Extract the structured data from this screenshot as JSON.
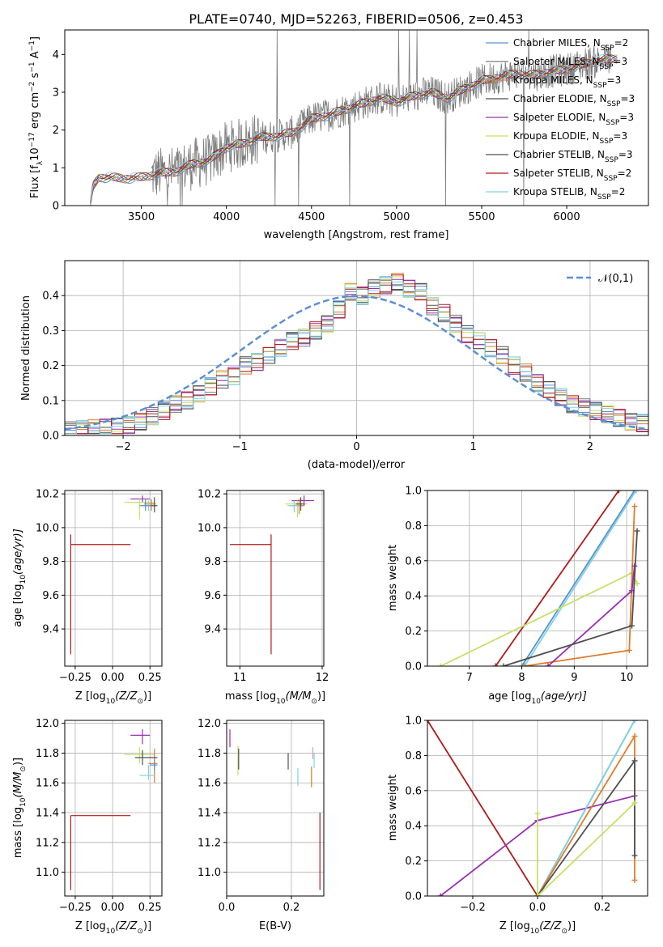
{
  "title": "PLATE=0740, MJD=52263, FIBERID=0506, z=0.453",
  "colors": {
    "chabrier_miles": "#5b8fd6",
    "salpeter_miles": "#7a7a7a",
    "kroupa_miles": "#e07b2a",
    "chabrier_elodie": "#505050",
    "salpeter_elodie": "#9a2fb0",
    "kroupa_elodie": "#c6e066",
    "chabrier_stelib": "#505050",
    "salpeter_stelib": "#b01a1a",
    "kroupa_stelib": "#7fd3e0"
  },
  "chart_data": [
    {
      "id": "spectrum",
      "type": "line",
      "title": "PLATE=0740, MJD=52263, FIBERID=0506, z=0.453",
      "xlabel": "wavelength [Angstrom, rest frame]",
      "ylabel_main": "Flux [f",
      "ylabel_sub": "λ",
      "ylabel_mid": "10",
      "ylabel_sup1": "−17",
      "ylabel_tail1": " erg cm",
      "ylabel_sup2": "−2",
      "ylabel_tail2": " s",
      "ylabel_sup3": "−1",
      "ylabel_tail3": " A",
      "ylabel_sup4": "−1",
      "ylabel_end": "]",
      "xlim": [
        3050,
        6480
      ],
      "ylim": [
        0,
        4.65
      ],
      "xticks": [
        3500,
        4000,
        4500,
        5000,
        5500,
        6000
      ],
      "yticks": [
        0,
        1,
        2,
        3,
        4
      ],
      "legend_position": "top-right",
      "legend": [
        {
          "base": "Chabrier MILES, N",
          "sub": "SSP",
          "tail": "=2",
          "color": "#5b8fd6"
        },
        {
          "base": "Salpeter MILES, N",
          "sub": "SSP",
          "tail": "=3",
          "color": "#7a7a7a"
        },
        {
          "base": "Kroupa MILES, N",
          "sub": "SSP",
          "tail": "=3",
          "color": "#e07b2a"
        },
        {
          "base": "Chabrier ELODIE, N",
          "sub": "SSP",
          "tail": "=3",
          "color": "#505050"
        },
        {
          "base": "Salpeter ELODIE, N",
          "sub": "SSP",
          "tail": "=3",
          "color": "#9a2fb0"
        },
        {
          "base": "Kroupa ELODIE, N",
          "sub": "SSP",
          "tail": "=3",
          "color": "#c6e066"
        },
        {
          "base": "Chabrier STELIB, N",
          "sub": "SSP",
          "tail": "=3",
          "color": "#505050"
        },
        {
          "base": "Salpeter STELIB, N",
          "sub": "SSP",
          "tail": "=2",
          "color": "#b01a1a"
        },
        {
          "base": "Kroupa STELIB, N",
          "sub": "SSP",
          "tail": "=2",
          "color": "#7fd3e0"
        }
      ],
      "model_knots": {
        "x": [
          3200,
          3215,
          3250,
          3300,
          3400,
          3500,
          3600,
          3700,
          3800,
          3900,
          4000,
          4100,
          4200,
          4300,
          4400,
          4500,
          4600,
          4700,
          4800,
          4900,
          5000,
          5100,
          5200,
          5300,
          5400,
          5500,
          5600,
          5700,
          5800,
          5900,
          6000,
          6100,
          6200,
          6300
        ],
        "y": [
          0,
          0.5,
          0.75,
          0.75,
          0.72,
          0.75,
          0.85,
          0.9,
          1.1,
          1.2,
          1.55,
          1.65,
          1.8,
          1.85,
          1.95,
          2.3,
          2.4,
          2.55,
          2.7,
          2.85,
          2.75,
          2.9,
          3.0,
          2.85,
          3.1,
          3.3,
          3.4,
          3.5,
          3.45,
          3.55,
          3.6,
          3.75,
          3.85,
          3.9
        ]
      },
      "data_xrange": [
        3560,
        6260
      ]
    },
    {
      "id": "residuals",
      "type": "histogram",
      "xlabel": "(data-model)/error",
      "ylabel": "Normed distribution",
      "xlim": [
        -2.5,
        2.5
      ],
      "ylim": [
        0,
        0.5
      ],
      "xticks": [
        -2,
        -1,
        0,
        1,
        2
      ],
      "xticklabels": [
        "−2",
        "−1",
        "0",
        "1",
        "2"
      ],
      "yticks": [
        0,
        0.1,
        0.2,
        0.3,
        0.4
      ],
      "yticklabels": [
        "0.0",
        "0.1",
        "0.2",
        "0.3",
        "0.4"
      ],
      "legend_position": "top-right",
      "legend": [
        {
          "label": "𝒩(0,1)",
          "color": "#5b8fd6",
          "dashed": true
        }
      ],
      "bin_width": 0.1,
      "bins_start": -2.5,
      "hist_shape": [
        0.015,
        0.017,
        0.02,
        0.022,
        0.025,
        0.03,
        0.04,
        0.055,
        0.07,
        0.09,
        0.1,
        0.12,
        0.14,
        0.16,
        0.17,
        0.2,
        0.21,
        0.23,
        0.25,
        0.27,
        0.28,
        0.3,
        0.32,
        0.36,
        0.41,
        0.4,
        0.42,
        0.43,
        0.44,
        0.42,
        0.41,
        0.37,
        0.35,
        0.32,
        0.29,
        0.27,
        0.25,
        0.23,
        0.2,
        0.18,
        0.15,
        0.13,
        0.11,
        0.09,
        0.08,
        0.07,
        0.06,
        0.05,
        0.04,
        0.035
      ]
    },
    {
      "id": "age_vs_z",
      "type": "errorbar",
      "xlabel": "Z [log",
      "xlabel_sub": "10",
      "xlabel_tail": "(Z/Z",
      "xlabel_odot": "⊙",
      "xlabel_end": ")]",
      "ylabel": "age  [log",
      "ylabel_sub": "10",
      "ylabel_tail": "(age/yr)]",
      "xlim": [
        -0.32,
        0.33
      ],
      "ylim": [
        9.18,
        10.22
      ],
      "xticks": [
        -0.25,
        0,
        0.25
      ],
      "xticklabels": [
        "−0.25",
        "0.00",
        "0.25"
      ],
      "yticks": [
        9.4,
        9.6,
        9.8,
        10.0,
        10.2
      ],
      "yticklabels": [
        "9.4",
        "9.6",
        "9.8",
        "10.0",
        "10.2"
      ],
      "points": [
        {
          "x": -0.28,
          "y": 9.9,
          "xerr": [
            0,
            0.4
          ],
          "yerr": [
            0.65,
            0.06
          ],
          "color": "#b01a1a"
        },
        {
          "x": 0.2,
          "y": 10.17,
          "xerr": [
            0.08,
            0.05
          ],
          "yerr": [
            0.02,
            0.02
          ],
          "color": "#9a2fb0"
        },
        {
          "x": 0.18,
          "y": 10.15,
          "xerr": [
            0.1,
            0.1
          ],
          "yerr": [
            0.1,
            0.02
          ],
          "color": "#c6e066"
        },
        {
          "x": 0.26,
          "y": 10.14,
          "xerr": [
            0.05,
            0.03
          ],
          "yerr": [
            0.04,
            0.03
          ],
          "color": "#e07b2a"
        },
        {
          "x": 0.24,
          "y": 10.13,
          "xerr": [
            0.04,
            0.05
          ],
          "yerr": [
            0.03,
            0.03
          ],
          "color": "#7fd3e0"
        },
        {
          "x": 0.28,
          "y": 10.13,
          "xerr": [
            0.03,
            0.02
          ],
          "yerr": [
            0.04,
            0.05
          ],
          "color": "#505050"
        },
        {
          "x": 0.22,
          "y": 10.13,
          "xerr": [
            0.04,
            0.04
          ],
          "yerr": [
            0.03,
            0.04
          ],
          "color": "#5b8fd6"
        }
      ]
    },
    {
      "id": "age_vs_mass",
      "type": "errorbar",
      "xlabel": "mass [log",
      "xlabel_sub": "10",
      "xlabel_tail": "(M/M",
      "xlabel_odot": "⊙",
      "xlabel_end": ")]",
      "xlim": [
        10.84,
        12.02
      ],
      "ylim": [
        9.18,
        10.22
      ],
      "xticks": [
        11,
        12
      ],
      "xticklabels": [
        "11",
        "12"
      ],
      "yticks": [
        9.4,
        9.6,
        9.8,
        10.0,
        10.2
      ],
      "yticklabels": [
        "9.4",
        "9.6",
        "9.8",
        "10.0",
        "10.2"
      ],
      "points": [
        {
          "x": 11.38,
          "y": 9.9,
          "xerr": [
            0.5,
            0
          ],
          "yerr": [
            0.65,
            0.06
          ],
          "color": "#b01a1a"
        },
        {
          "x": 11.78,
          "y": 10.16,
          "xerr": [
            0.15,
            0.12
          ],
          "yerr": [
            0.03,
            0.03
          ],
          "color": "#9a2fb0"
        },
        {
          "x": 11.7,
          "y": 10.14,
          "xerr": [
            0.15,
            0.12
          ],
          "yerr": [
            0.08,
            0.02
          ],
          "color": "#c6e066"
        },
        {
          "x": 11.72,
          "y": 10.13,
          "xerr": [
            0.1,
            0.06
          ],
          "yerr": [
            0.05,
            0.04
          ],
          "color": "#e07b2a"
        },
        {
          "x": 11.66,
          "y": 10.13,
          "xerr": [
            0.08,
            0.06
          ],
          "yerr": [
            0.04,
            0.03
          ],
          "color": "#7fd3e0"
        },
        {
          "x": 11.74,
          "y": 10.14,
          "xerr": [
            0.06,
            0.05
          ],
          "yerr": [
            0.04,
            0.04
          ],
          "color": "#505050"
        }
      ]
    },
    {
      "id": "weight_vs_age",
      "type": "line",
      "xlabel": "age  [log",
      "xlabel_sub": "10",
      "xlabel_tail": "(age/yr)]",
      "ylabel": "mass weight",
      "xlim": [
        6.2,
        10.4
      ],
      "ylim": [
        0,
        1.0
      ],
      "xticks": [
        7,
        8,
        9,
        10
      ],
      "xticklabels": [
        "7",
        "8",
        "9",
        "10"
      ],
      "yticks": [
        0,
        0.2,
        0.4,
        0.6,
        0.8,
        1.0
      ],
      "yticklabels": [
        "0.0",
        "0.2",
        "0.4",
        "0.6",
        "0.8",
        "1.0"
      ],
      "series": [
        {
          "color": "#b01a1a",
          "x": [
            7.5,
            9.85
          ],
          "y": [
            0,
            1.0
          ]
        },
        {
          "color": "#5b8fd6",
          "x": [
            8.0,
            10.15
          ],
          "y": [
            0,
            1.0
          ]
        },
        {
          "color": "#7fd3e0",
          "x": [
            8.05,
            10.18
          ],
          "y": [
            0,
            1.0
          ]
        },
        {
          "color": "#c6e066",
          "x": [
            6.45,
            10.1,
            10.2
          ],
          "y": [
            0,
            0.53,
            0.47
          ]
        },
        {
          "color": "#e07b2a",
          "x": [
            8.05,
            10.05,
            10.15
          ],
          "y": [
            0,
            0.09,
            0.91
          ]
        },
        {
          "color": "#9a2fb0",
          "x": [
            8.5,
            10.1,
            10.15
          ],
          "y": [
            0,
            0.43,
            0.57
          ]
        },
        {
          "color": "#505050",
          "x": [
            7.65,
            10.1,
            10.2
          ],
          "y": [
            0,
            0.23,
            0.77
          ]
        }
      ]
    },
    {
      "id": "mass_vs_z",
      "type": "errorbar",
      "xlabel": "Z [log",
      "xlabel_sub": "10",
      "xlabel_tail": "(Z/Z",
      "xlabel_odot": "⊙",
      "xlabel_end": ")]",
      "ylabel": "mass [log",
      "ylabel_sub": "10",
      "ylabel_tail": "(M/M",
      "ylabel_odot": "⊙",
      "ylabel_end": ")]",
      "xlim": [
        -0.32,
        0.33
      ],
      "ylim": [
        10.84,
        12.02
      ],
      "xticks": [
        -0.25,
        0,
        0.25
      ],
      "xticklabels": [
        "−0.25",
        "0.00",
        "0.25"
      ],
      "yticks": [
        11.0,
        11.2,
        11.4,
        11.6,
        11.8,
        12.0
      ],
      "yticklabels": [
        "11.0",
        "11.2",
        "11.4",
        "11.6",
        "11.8",
        "12.0"
      ],
      "points": [
        {
          "x": -0.28,
          "y": 11.38,
          "xerr": [
            0,
            0.4
          ],
          "yerr": [
            0.5,
            0
          ],
          "color": "#b01a1a"
        },
        {
          "x": 0.2,
          "y": 11.92,
          "xerr": [
            0.08,
            0.05
          ],
          "yerr": [
            0.06,
            0.04
          ],
          "color": "#9a2fb0"
        },
        {
          "x": 0.18,
          "y": 11.79,
          "xerr": [
            0.1,
            0.1
          ],
          "yerr": [
            0.06,
            0.05
          ],
          "color": "#c6e066"
        },
        {
          "x": 0.28,
          "y": 11.73,
          "xerr": [
            0.04,
            0.02
          ],
          "yerr": [
            0.13,
            0.1
          ],
          "color": "#e07b2a"
        },
        {
          "x": 0.24,
          "y": 11.65,
          "xerr": [
            0.06,
            0.04
          ],
          "yerr": [
            0.03,
            0.07
          ],
          "color": "#7fd3e0"
        },
        {
          "x": 0.2,
          "y": 11.77,
          "xerr": [
            0.05,
            0.1
          ],
          "yerr": [
            0.05,
            0.05
          ],
          "color": "#505050"
        },
        {
          "x": 0.28,
          "y": 11.72,
          "xerr": [
            0.03,
            0.02
          ],
          "yerr": [
            0.04,
            0.04
          ],
          "color": "#5b8fd6"
        }
      ]
    },
    {
      "id": "mass_vs_ebv",
      "type": "errorbar",
      "xlabel": "E(B-V)",
      "xlim": [
        0,
        0.3
      ],
      "ylim": [
        10.84,
        12.02
      ],
      "xticks": [
        0,
        0.2
      ],
      "xticklabels": [
        "0.0",
        "0.2"
      ],
      "yticks": [
        11.0,
        11.2,
        11.4,
        11.6,
        11.8,
        12.0
      ],
      "yticklabels": [
        "11.0",
        "11.2",
        "11.4",
        "11.6",
        "11.8",
        "12.0"
      ],
      "points": [
        {
          "x": 0.288,
          "y": 11.38,
          "xerr": [
            0,
            0
          ],
          "yerr": [
            0.5,
            0.02
          ],
          "color": "#b01a1a"
        },
        {
          "x": 0.01,
          "y": 11.9,
          "xerr": [
            0,
            0
          ],
          "yerr": [
            0.06,
            0.06
          ],
          "color": "#9a2fb0"
        },
        {
          "x": 0.035,
          "y": 11.75,
          "xerr": [
            0,
            0
          ],
          "yerr": [
            0.1,
            0.1
          ],
          "color": "#c6e066"
        },
        {
          "x": 0.037,
          "y": 11.76,
          "xerr": [
            0,
            0
          ],
          "yerr": [
            0.07,
            0.07
          ],
          "color": "#505050"
        },
        {
          "x": 0.19,
          "y": 11.75,
          "xerr": [
            0,
            0
          ],
          "yerr": [
            0.06,
            0.05
          ],
          "color": "#505050"
        },
        {
          "x": 0.22,
          "y": 11.64,
          "xerr": [
            0,
            0
          ],
          "yerr": [
            0.06,
            0.06
          ],
          "color": "#7fd3e0"
        },
        {
          "x": 0.262,
          "y": 11.65,
          "xerr": [
            0,
            0
          ],
          "yerr": [
            0.08,
            0.06
          ],
          "color": "#e07b2a"
        },
        {
          "x": 0.27,
          "y": 11.75,
          "xerr": [
            0,
            0
          ],
          "yerr": [
            0.05,
            0.05
          ],
          "color": "#7fd3e0"
        },
        {
          "x": 0.266,
          "y": 11.8,
          "xerr": [
            0,
            0
          ],
          "yerr": [
            0.04,
            0.04
          ],
          "color": "#e89ab0"
        }
      ]
    },
    {
      "id": "weight_vs_z",
      "type": "line",
      "xlabel": "Z [log",
      "xlabel_sub": "10",
      "xlabel_tail": "(Z/Z",
      "xlabel_odot": "⊙",
      "xlabel_end": ")]",
      "ylabel": "mass weight",
      "xlim": [
        -0.34,
        0.34
      ],
      "ylim": [
        0,
        1.0
      ],
      "xticks": [
        -0.2,
        0,
        0.2
      ],
      "xticklabels": [
        "−0.2",
        "0.0",
        "0.2"
      ],
      "yticks": [
        0,
        0.2,
        0.4,
        0.6,
        0.8,
        1.0
      ],
      "yticklabels": [
        "0.0",
        "0.2",
        "0.4",
        "0.6",
        "0.8",
        "1.0"
      ],
      "series": [
        {
          "color": "#b01a1a",
          "x": [
            -0.34,
            0.0
          ],
          "y": [
            1.0,
            0.0
          ]
        },
        {
          "color": "#9a2fb0",
          "x": [
            -0.3,
            0.0,
            0.3
          ],
          "y": [
            0.0,
            0.43,
            0.57
          ]
        },
        {
          "color": "#5b8fd6",
          "x": [
            0.0,
            0.3
          ],
          "y": [
            0.0,
            1.0
          ]
        },
        {
          "color": "#7fd3e0",
          "x": [
            0.0,
            0.3
          ],
          "y": [
            0.0,
            1.0
          ]
        },
        {
          "color": "#e07b2a",
          "x": [
            0.0,
            0.3,
            0.3
          ],
          "y": [
            0.0,
            0.91,
            0.09
          ]
        },
        {
          "color": "#505050",
          "x": [
            0.0,
            0.3,
            0.3
          ],
          "y": [
            0.0,
            0.77,
            0.23
          ]
        },
        {
          "color": "#c6e066",
          "x": [
            0.0,
            0.0,
            0.3
          ],
          "y": [
            0.47,
            0.0,
            0.53
          ]
        }
      ]
    }
  ]
}
